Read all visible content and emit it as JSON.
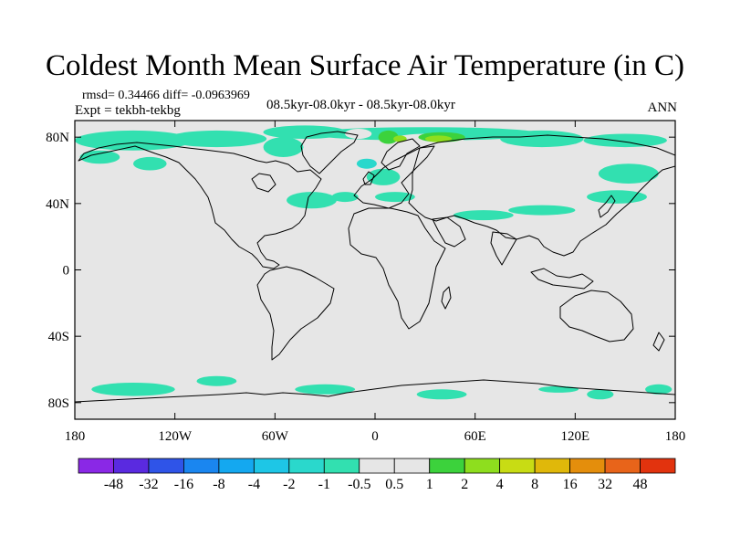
{
  "chart_data": {
    "type": "heatmap",
    "title": "Coldest Month Mean Surface Air Temperature (in C)",
    "stats": "rmsd= 0.34466 diff= -0.0963969",
    "experiment": "Expt = tekbh-tekbg",
    "period": "08.5kyr-08.0kyr - 08.5kyr-08.0kyr",
    "season": "ANN",
    "lon_range": [
      -180,
      180
    ],
    "lat_range": [
      -90,
      90
    ],
    "x_ticks": [
      {
        "value": -180,
        "label": "180"
      },
      {
        "value": -120,
        "label": "120W"
      },
      {
        "value": -60,
        "label": "60W"
      },
      {
        "value": 0,
        "label": "0"
      },
      {
        "value": 60,
        "label": "60E"
      },
      {
        "value": 120,
        "label": "120E"
      },
      {
        "value": 180,
        "label": "180"
      }
    ],
    "y_ticks": [
      {
        "value": 80,
        "label": "80N"
      },
      {
        "value": 40,
        "label": "40N"
      },
      {
        "value": 0,
        "label": "0"
      },
      {
        "value": -40,
        "label": "40S"
      },
      {
        "value": -80,
        "label": "80S"
      }
    ],
    "colorbar": {
      "labels": [
        "-48",
        "-32",
        "-16",
        "-8",
        "-4",
        "-2",
        "-1",
        "-0.5",
        "0.5",
        "1",
        "2",
        "4",
        "8",
        "16",
        "32",
        "48"
      ],
      "colors": [
        "#8a28e6",
        "#5a2ae0",
        "#2f54e8",
        "#1a86f0",
        "#14a8f0",
        "#1ec6e6",
        "#2ad8cc",
        "#32e0b0",
        "#e6e6e6",
        "#3cd23c",
        "#8ede1e",
        "#c8dc14",
        "#e0b80a",
        "#e48e0c",
        "#e8641a",
        "#e2330e"
      ]
    },
    "regions": [
      {
        "category": "-0.5",
        "lon": -145,
        "lat": 78,
        "rlon": 35,
        "rlat": 6
      },
      {
        "category": "-0.5",
        "lon": -95,
        "lat": 79,
        "rlon": 30,
        "rlat": 5
      },
      {
        "category": "-0.5",
        "lon": -55,
        "lat": 74,
        "rlon": 12,
        "rlat": 6
      },
      {
        "category": "-0.5",
        "lon": -42,
        "lat": 83,
        "rlon": 25,
        "rlat": 4
      },
      {
        "category": "-0.5",
        "lon": 30,
        "lat": 82,
        "rlon": 70,
        "rlat": 4
      },
      {
        "category": "-0.5",
        "lon": 100,
        "lat": 79,
        "rlon": 25,
        "rlat": 5
      },
      {
        "category": "-0.5",
        "lon": 150,
        "lat": 78,
        "rlon": 25,
        "rlat": 4
      },
      {
        "category": "-0.5",
        "lon": -165,
        "lat": 68,
        "rlon": 12,
        "rlat": 4
      },
      {
        "category": "-0.5",
        "lon": -135,
        "lat": 64,
        "rlon": 10,
        "rlat": 4
      },
      {
        "category": "-0.5",
        "lon": -38,
        "lat": 42,
        "rlon": 15,
        "rlat": 5
      },
      {
        "category": "-0.5",
        "lon": -18,
        "lat": 44,
        "rlon": 8,
        "rlat": 3
      },
      {
        "category": "-0.5",
        "lon": 5,
        "lat": 56,
        "rlon": 10,
        "rlat": 5
      },
      {
        "category": "-0.5",
        "lon": 12,
        "lat": 44,
        "rlon": 12,
        "rlat": 3
      },
      {
        "category": "-0.5",
        "lon": 65,
        "lat": 33,
        "rlon": 18,
        "rlat": 3
      },
      {
        "category": "-0.5",
        "lon": 100,
        "lat": 36,
        "rlon": 20,
        "rlat": 3
      },
      {
        "category": "-0.5",
        "lon": 145,
        "lat": 44,
        "rlon": 18,
        "rlat": 4
      },
      {
        "category": "-0.5",
        "lon": 152,
        "lat": 58,
        "rlon": 18,
        "rlat": 6
      },
      {
        "category": "-0.5",
        "lon": -95,
        "lat": -67,
        "rlon": 12,
        "rlat": 3
      },
      {
        "category": "-0.5",
        "lon": -145,
        "lat": -72,
        "rlon": 25,
        "rlat": 4
      },
      {
        "category": "-0.5",
        "lon": -30,
        "lat": -72,
        "rlon": 18,
        "rlat": 3
      },
      {
        "category": "-0.5",
        "lon": 40,
        "lat": -75,
        "rlon": 15,
        "rlat": 3
      },
      {
        "category": "-0.5",
        "lon": 110,
        "lat": -72,
        "rlon": 12,
        "rlat": 2
      },
      {
        "category": "-0.5",
        "lon": 135,
        "lat": -75,
        "rlon": 8,
        "rlat": 3
      },
      {
        "category": "-0.5",
        "lon": 170,
        "lat": -72,
        "rlon": 8,
        "rlat": 3
      },
      {
        "category": "-1",
        "lon": -5,
        "lat": 64,
        "rlon": 6,
        "rlat": 3
      },
      {
        "category": "0.5",
        "lon": 58,
        "lat": 55,
        "rlon": 38,
        "rlat": 10
      },
      {
        "category": "0.5",
        "lon": 95,
        "lat": 62,
        "rlon": 25,
        "rlat": 8
      },
      {
        "category": "0.5",
        "lon": 30,
        "lat": 76,
        "rlon": 25,
        "rlat": 6
      },
      {
        "category": "0.5",
        "lon": -10,
        "lat": 82,
        "rlon": 8,
        "rlat": 3
      },
      {
        "category": "0.5",
        "lon": 0,
        "lat": 73,
        "rlon": 6,
        "rlat": 3
      },
      {
        "category": "0.5",
        "lon": -80,
        "lat": 67,
        "rlon": 6,
        "rlat": 3
      },
      {
        "category": "0.5",
        "lon": -52,
        "lat": 62,
        "rlon": 4,
        "rlat": 3
      },
      {
        "category": "0.5",
        "lon": 0,
        "lat": -74,
        "rlon": 14,
        "rlat": 3
      },
      {
        "category": "0.5",
        "lon": 60,
        "lat": -68,
        "rlon": 5,
        "rlat": 2
      },
      {
        "category": "0.5",
        "lon": -70,
        "lat": -66,
        "rlon": 3,
        "rlat": 2
      },
      {
        "category": "1",
        "lon": 8,
        "lat": 80,
        "rlon": 6,
        "rlat": 4
      },
      {
        "category": "1",
        "lon": 40,
        "lat": 80,
        "rlon": 14,
        "rlat": 3
      },
      {
        "category": "2",
        "lon": 15,
        "lat": 79,
        "rlon": 4,
        "rlat": 2
      },
      {
        "category": "2",
        "lon": 38,
        "lat": 79,
        "rlon": 8,
        "rlat": 2
      }
    ]
  }
}
